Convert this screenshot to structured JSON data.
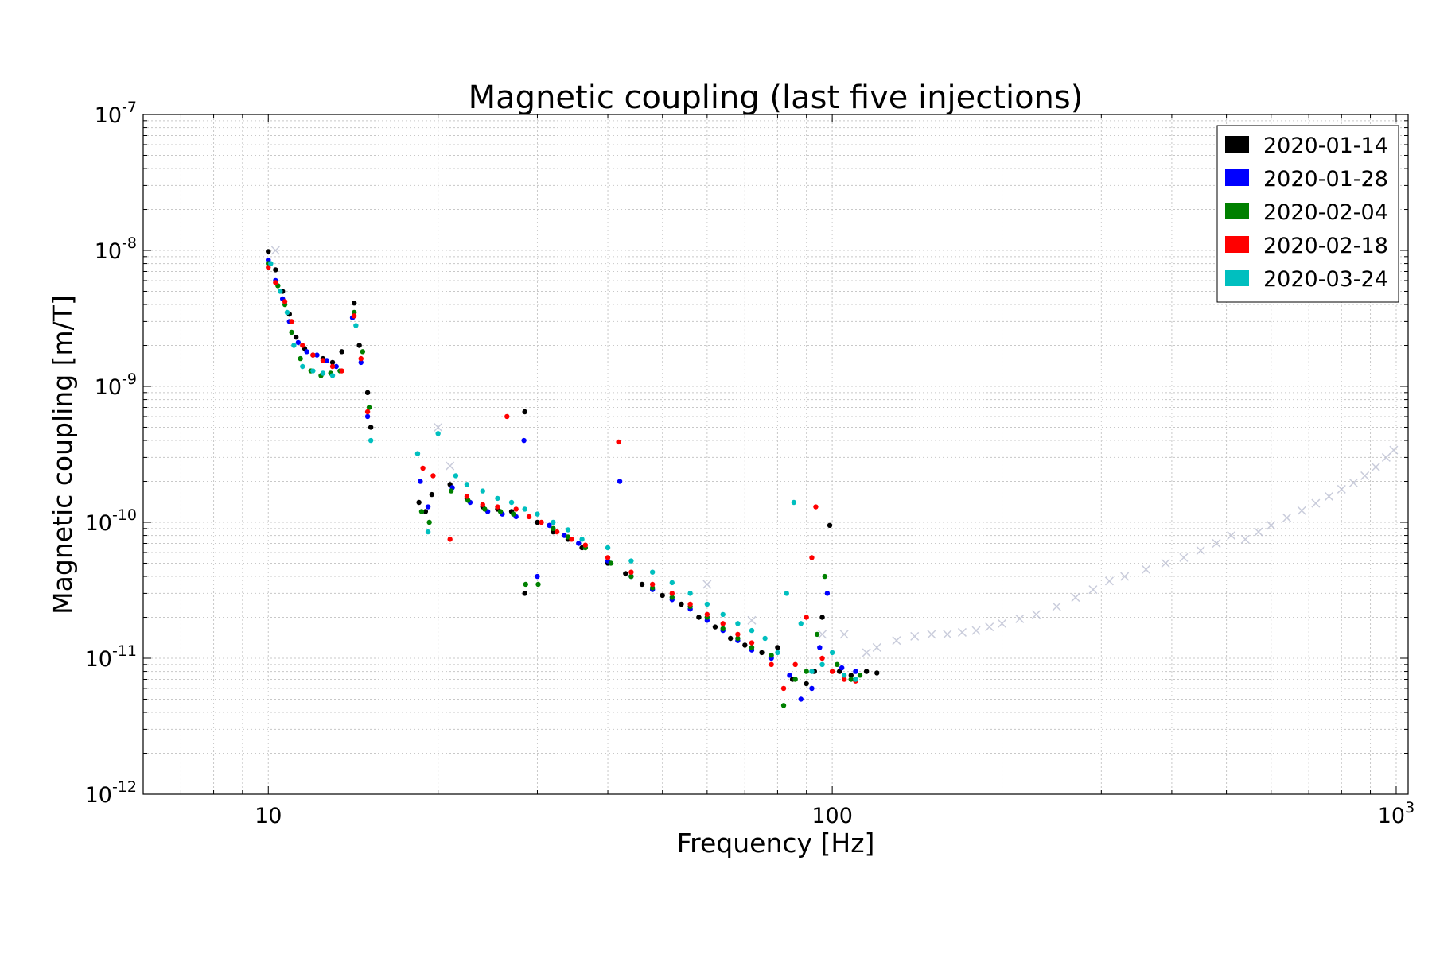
{
  "chart_data": {
    "type": "scatter",
    "title": "Magnetic coupling (last five injections)",
    "xlabel": "Frequency [Hz]",
    "ylabel": "Magnetic coupling [m/T]",
    "xscale": "log",
    "yscale": "log",
    "xlim": [
      6,
      1050
    ],
    "ylim": [
      1e-12,
      1e-07
    ],
    "x_tick_labels": [
      {
        "value": 10,
        "base": "10",
        "exp": ""
      },
      {
        "value": 100,
        "base": "100",
        "exp": ""
      },
      {
        "value": 1000,
        "base": "10",
        "exp": "3"
      }
    ],
    "y_tick_labels": [
      {
        "value": 1e-12,
        "base": "10",
        "exp": "-12"
      },
      {
        "value": 1e-11,
        "base": "10",
        "exp": "-11"
      },
      {
        "value": 1e-10,
        "base": "10",
        "exp": "-10"
      },
      {
        "value": 1e-09,
        "base": "10",
        "exp": "-9"
      },
      {
        "value": 1e-08,
        "base": "10",
        "exp": "-8"
      },
      {
        "value": 1e-07,
        "base": "10",
        "exp": "-7"
      }
    ],
    "grid": true,
    "legend_position": "top-right",
    "series": [
      {
        "name": "2020-01-14",
        "color": "#000000",
        "points": [
          [
            10.0,
            9.8e-09
          ],
          [
            10.3,
            7.2e-09
          ],
          [
            10.6,
            5e-09
          ],
          [
            10.9,
            3.4e-09
          ],
          [
            11.2,
            2.3e-09
          ],
          [
            11.6,
            1.9e-09
          ],
          [
            12.0,
            1.7e-09
          ],
          [
            12.5,
            1.6e-09
          ],
          [
            13.0,
            1.5e-09
          ],
          [
            13.5,
            1.8e-09
          ],
          [
            14.2,
            4.1e-09
          ],
          [
            14.5,
            2e-09
          ],
          [
            15.0,
            9e-10
          ],
          [
            15.2,
            5e-10
          ],
          [
            18.5,
            1.4e-10
          ],
          [
            19.0,
            1.2e-10
          ],
          [
            19.5,
            1.6e-10
          ],
          [
            21.0,
            1.9e-10
          ],
          [
            22.5,
            1.5e-10
          ],
          [
            24.0,
            1.3e-10
          ],
          [
            25.5,
            1.25e-10
          ],
          [
            27.0,
            1.2e-10
          ],
          [
            28.5,
            6.5e-10
          ],
          [
            28.5,
            3e-11
          ],
          [
            30.0,
            1e-10
          ],
          [
            32.0,
            8.5e-11
          ],
          [
            34.0,
            7.5e-11
          ],
          [
            36.0,
            6.5e-11
          ],
          [
            40.0,
            5e-11
          ],
          [
            43.0,
            4.2e-11
          ],
          [
            46.0,
            3.5e-11
          ],
          [
            50.0,
            2.9e-11
          ],
          [
            54.0,
            2.5e-11
          ],
          [
            58.0,
            2e-11
          ],
          [
            62.0,
            1.7e-11
          ],
          [
            66.0,
            1.4e-11
          ],
          [
            70.0,
            1.25e-11
          ],
          [
            75.0,
            1.1e-11
          ],
          [
            80.0,
            1.2e-11
          ],
          [
            85.0,
            7e-12
          ],
          [
            90.0,
            6.5e-12
          ],
          [
            93.0,
            8e-12
          ],
          [
            96.0,
            2e-11
          ],
          [
            99.0,
            9.5e-11
          ],
          [
            103.0,
            8e-12
          ],
          [
            108.0,
            7.5e-12
          ],
          [
            115.0,
            8e-12
          ],
          [
            120.0,
            7.8e-12
          ]
        ]
      },
      {
        "name": "2020-01-28",
        "color": "#0000ff",
        "points": [
          [
            10.0,
            8.5e-09
          ],
          [
            10.3,
            6e-09
          ],
          [
            10.6,
            4.4e-09
          ],
          [
            10.9,
            3e-09
          ],
          [
            11.3,
            2.1e-09
          ],
          [
            11.7,
            1.8e-09
          ],
          [
            12.2,
            1.7e-09
          ],
          [
            12.7,
            1.55e-09
          ],
          [
            13.2,
            1.4e-09
          ],
          [
            14.1,
            3.2e-09
          ],
          [
            14.6,
            1.5e-09
          ],
          [
            15.0,
            6e-10
          ],
          [
            18.6,
            2e-10
          ],
          [
            19.2,
            1.3e-10
          ],
          [
            21.2,
            1.8e-10
          ],
          [
            22.8,
            1.4e-10
          ],
          [
            24.5,
            1.2e-10
          ],
          [
            26.0,
            1.15e-10
          ],
          [
            27.5,
            1.1e-10
          ],
          [
            28.4,
            4e-10
          ],
          [
            30.0,
            4e-11
          ],
          [
            31.5,
            9.5e-11
          ],
          [
            33.5,
            8e-11
          ],
          [
            35.5,
            7e-11
          ],
          [
            40.0,
            5.2e-11
          ],
          [
            42.0,
            2e-10
          ],
          [
            44.0,
            4e-11
          ],
          [
            48.0,
            3.2e-11
          ],
          [
            52.0,
            2.7e-11
          ],
          [
            56.0,
            2.3e-11
          ],
          [
            60.0,
            1.9e-11
          ],
          [
            64.0,
            1.6e-11
          ],
          [
            68.0,
            1.35e-11
          ],
          [
            72.0,
            1.15e-11
          ],
          [
            78.0,
            1e-11
          ],
          [
            84.0,
            7.5e-12
          ],
          [
            88.0,
            5e-12
          ],
          [
            92.0,
            6e-12
          ],
          [
            95.0,
            1.2e-11
          ],
          [
            98.0,
            3e-11
          ],
          [
            104.0,
            8.5e-12
          ],
          [
            110.0,
            8e-12
          ]
        ]
      },
      {
        "name": "2020-02-04",
        "color": "#008000",
        "points": [
          [
            10.0,
            8e-09
          ],
          [
            10.4,
            5.5e-09
          ],
          [
            10.7,
            4e-09
          ],
          [
            11.0,
            2.5e-09
          ],
          [
            11.4,
            1.6e-09
          ],
          [
            11.9,
            1.3e-09
          ],
          [
            12.4,
            1.2e-09
          ],
          [
            12.9,
            1.25e-09
          ],
          [
            13.4,
            1.3e-09
          ],
          [
            14.2,
            3.5e-09
          ],
          [
            14.7,
            1.8e-09
          ],
          [
            15.1,
            7e-10
          ],
          [
            18.7,
            1.2e-10
          ],
          [
            19.3,
            1e-10
          ],
          [
            21.1,
            1.7e-10
          ],
          [
            22.6,
            1.45e-10
          ],
          [
            24.2,
            1.25e-10
          ],
          [
            25.8,
            1.2e-10
          ],
          [
            27.2,
            1.15e-10
          ],
          [
            28.6,
            3.5e-11
          ],
          [
            30.1,
            3.5e-11
          ],
          [
            32.0,
            9e-11
          ],
          [
            34.0,
            7.8e-11
          ],
          [
            36.5,
            6.5e-11
          ],
          [
            40.5,
            5e-11
          ],
          [
            44.0,
            4e-11
          ],
          [
            48.0,
            3.3e-11
          ],
          [
            52.0,
            2.8e-11
          ],
          [
            56.0,
            2.4e-11
          ],
          [
            60.0,
            2e-11
          ],
          [
            64.0,
            1.65e-11
          ],
          [
            68.0,
            1.4e-11
          ],
          [
            72.0,
            1.2e-11
          ],
          [
            78.0,
            1.05e-11
          ],
          [
            82.0,
            4.5e-12
          ],
          [
            86.0,
            7e-12
          ],
          [
            90.0,
            8e-12
          ],
          [
            94.0,
            1.5e-11
          ],
          [
            97.0,
            4e-11
          ],
          [
            102.0,
            9e-12
          ],
          [
            108.0,
            7e-12
          ],
          [
            112.0,
            7.5e-12
          ]
        ]
      },
      {
        "name": "2020-02-18",
        "color": "#ff0000",
        "points": [
          [
            10.0,
            7.5e-09
          ],
          [
            10.3,
            5.8e-09
          ],
          [
            10.7,
            4.2e-09
          ],
          [
            11.0,
            3e-09
          ],
          [
            11.5,
            2e-09
          ],
          [
            12.0,
            1.7e-09
          ],
          [
            12.5,
            1.55e-09
          ],
          [
            13.0,
            1.4e-09
          ],
          [
            13.5,
            1.3e-09
          ],
          [
            14.2,
            3.3e-09
          ],
          [
            14.6,
            1.6e-09
          ],
          [
            15.0,
            6.5e-10
          ],
          [
            18.8,
            2.5e-10
          ],
          [
            19.6,
            2.2e-10
          ],
          [
            21.0,
            7.5e-11
          ],
          [
            22.5,
            1.55e-10
          ],
          [
            24.0,
            1.35e-10
          ],
          [
            25.5,
            1.3e-10
          ],
          [
            26.5,
            6e-10
          ],
          [
            27.5,
            1.25e-10
          ],
          [
            29.0,
            1.1e-10
          ],
          [
            30.5,
            1e-10
          ],
          [
            32.5,
            8.5e-11
          ],
          [
            34.5,
            7.5e-11
          ],
          [
            36.5,
            6.8e-11
          ],
          [
            40.0,
            5.5e-11
          ],
          [
            41.8,
            3.9e-10
          ],
          [
            44.0,
            4.3e-11
          ],
          [
            48.0,
            3.5e-11
          ],
          [
            52.0,
            3e-11
          ],
          [
            56.0,
            2.5e-11
          ],
          [
            60.0,
            2.1e-11
          ],
          [
            64.0,
            1.8e-11
          ],
          [
            68.0,
            1.5e-11
          ],
          [
            72.0,
            1.3e-11
          ],
          [
            78.0,
            9e-12
          ],
          [
            82.0,
            6e-12
          ],
          [
            86.0,
            9e-12
          ],
          [
            90.0,
            2e-11
          ],
          [
            92.0,
            5.5e-11
          ],
          [
            93.5,
            1.3e-10
          ],
          [
            96.0,
            1e-11
          ],
          [
            100.0,
            8e-12
          ],
          [
            105.0,
            7e-12
          ],
          [
            110.0,
            6.8e-12
          ]
        ]
      },
      {
        "name": "2020-03-24",
        "color": "#00bfbf",
        "points": [
          [
            10.1,
            8e-09
          ],
          [
            10.5,
            5e-09
          ],
          [
            10.8,
            3.5e-09
          ],
          [
            11.1,
            2e-09
          ],
          [
            11.5,
            1.4e-09
          ],
          [
            12.0,
            1.3e-09
          ],
          [
            12.5,
            1.25e-09
          ],
          [
            13.0,
            1.2e-09
          ],
          [
            14.3,
            2.8e-09
          ],
          [
            15.2,
            4e-10
          ],
          [
            18.4,
            3.2e-10
          ],
          [
            19.2,
            8.5e-11
          ],
          [
            20.0,
            4.5e-10
          ],
          [
            21.5,
            2.2e-10
          ],
          [
            22.5,
            1.9e-10
          ],
          [
            24.0,
            1.7e-10
          ],
          [
            25.5,
            1.5e-10
          ],
          [
            27.0,
            1.4e-10
          ],
          [
            28.5,
            1.25e-10
          ],
          [
            30.0,
            1.15e-10
          ],
          [
            32.0,
            1e-10
          ],
          [
            34.0,
            8.8e-11
          ],
          [
            36.0,
            7.5e-11
          ],
          [
            40.0,
            6.5e-11
          ],
          [
            44.0,
            5.2e-11
          ],
          [
            48.0,
            4.3e-11
          ],
          [
            52.0,
            3.6e-11
          ],
          [
            56.0,
            3e-11
          ],
          [
            60.0,
            2.5e-11
          ],
          [
            64.0,
            2.1e-11
          ],
          [
            68.0,
            1.8e-11
          ],
          [
            72.0,
            1.6e-11
          ],
          [
            76.0,
            1.4e-11
          ],
          [
            80.0,
            1.1e-11
          ],
          [
            83.0,
            3e-11
          ],
          [
            85.5,
            1.4e-10
          ],
          [
            88.0,
            1.8e-11
          ],
          [
            92.0,
            8e-12
          ],
          [
            96.0,
            9e-12
          ],
          [
            100.0,
            1.1e-11
          ],
          [
            105.0,
            7.5e-12
          ],
          [
            110.0,
            7e-12
          ]
        ]
      }
    ],
    "upper_limit_markers": {
      "marker": "x",
      "color": "#b8bcd0",
      "points": [
        [
          10.3,
          1e-08
        ],
        [
          20.0,
          5e-10
        ],
        [
          21.0,
          2.6e-10
        ],
        [
          60.0,
          3.5e-11
        ],
        [
          72.0,
          1.9e-11
        ],
        [
          96.0,
          1.5e-11
        ],
        [
          105.0,
          1.5e-11
        ],
        [
          115.0,
          1.1e-11
        ],
        [
          120.0,
          1.2e-11
        ],
        [
          130.0,
          1.35e-11
        ],
        [
          140.0,
          1.45e-11
        ],
        [
          150.0,
          1.5e-11
        ],
        [
          160.0,
          1.5e-11
        ],
        [
          170.0,
          1.55e-11
        ],
        [
          180.0,
          1.6e-11
        ],
        [
          190.0,
          1.7e-11
        ],
        [
          200.0,
          1.8e-11
        ],
        [
          215.0,
          1.95e-11
        ],
        [
          230.0,
          2.1e-11
        ],
        [
          250.0,
          2.4e-11
        ],
        [
          270.0,
          2.8e-11
        ],
        [
          290.0,
          3.2e-11
        ],
        [
          310.0,
          3.7e-11
        ],
        [
          330.0,
          4e-11
        ],
        [
          360.0,
          4.5e-11
        ],
        [
          390.0,
          5e-11
        ],
        [
          420.0,
          5.5e-11
        ],
        [
          450.0,
          6.2e-11
        ],
        [
          480.0,
          7e-11
        ],
        [
          510.0,
          8e-11
        ],
        [
          540.0,
          7.5e-11
        ],
        [
          570.0,
          8.5e-11
        ],
        [
          600.0,
          9.5e-11
        ],
        [
          640.0,
          1.08e-10
        ],
        [
          680.0,
          1.22e-10
        ],
        [
          720.0,
          1.38e-10
        ],
        [
          760.0,
          1.55e-10
        ],
        [
          800.0,
          1.75e-10
        ],
        [
          840.0,
          1.95e-10
        ],
        [
          880.0,
          2.2e-10
        ],
        [
          920.0,
          2.55e-10
        ],
        [
          960.0,
          3e-10
        ],
        [
          990.0,
          3.4e-10
        ]
      ]
    }
  }
}
